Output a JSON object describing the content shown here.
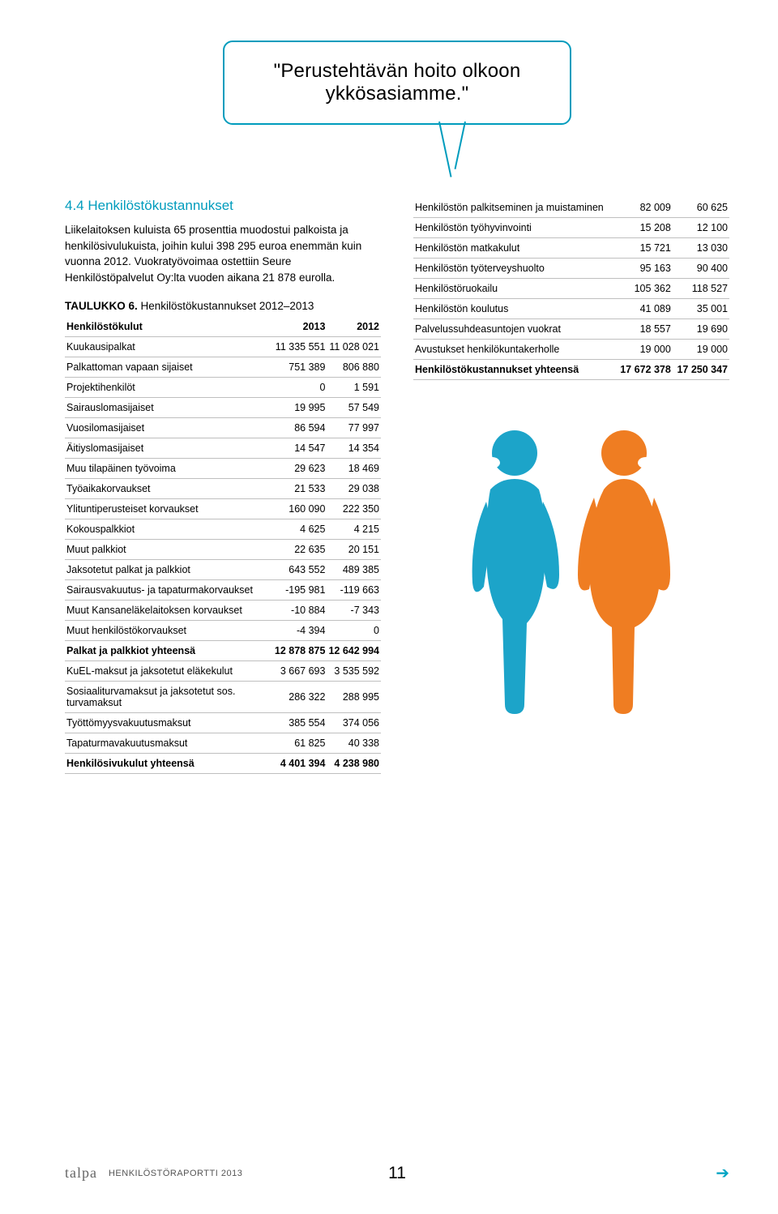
{
  "speech_bubble": {
    "text": "\"Perustehtävän hoito olkoon ykkösasiamme.\"",
    "border_color": "#009cbd",
    "fontsize": 24
  },
  "section": {
    "title": "4.4 Henkilöstökustannukset",
    "title_color": "#009cbd",
    "body": "Liikelaitoksen kuluista 65 prosenttia muodostui palkoista ja henkilösivulukuista, joihin kului  398 295 euroa enemmän kuin vuonna 2012. Vuokratyövoimaa ostettiin Seure Henkilöstöpalvelut Oy:lta vuoden aikana 21 878 eurolla."
  },
  "table_left": {
    "title": "TAULUKKO 6. Henkilöstökustannukset 2012–2013",
    "columns": [
      "Henkilöstökulut",
      "2013",
      "2012"
    ],
    "rows": [
      {
        "label": "Kuukausipalkat",
        "c1": "11 335 551",
        "c2": "11 028 021",
        "bold": false
      },
      {
        "label": "Palkattoman vapaan sijaiset",
        "c1": "751 389",
        "c2": "806 880",
        "bold": false
      },
      {
        "label": "Projektihenkilöt",
        "c1": "0",
        "c2": "1 591",
        "bold": false
      },
      {
        "label": "Sairauslomasijaiset",
        "c1": "19 995",
        "c2": "57 549",
        "bold": false
      },
      {
        "label": "Vuosilomasijaiset",
        "c1": "86 594",
        "c2": "77 997",
        "bold": false
      },
      {
        "label": "Äitiyslomasijaiset",
        "c1": "14 547",
        "c2": "14 354",
        "bold": false
      },
      {
        "label": "Muu tilapäinen työvoima",
        "c1": "29 623",
        "c2": "18 469",
        "bold": false
      },
      {
        "label": "Työaikakorvaukset",
        "c1": "21 533",
        "c2": "29 038",
        "bold": false
      },
      {
        "label": "Ylituntiperusteiset korvaukset",
        "c1": "160 090",
        "c2": "222 350",
        "bold": false
      },
      {
        "label": "Kokouspalkkiot",
        "c1": "4 625",
        "c2": "4 215",
        "bold": false
      },
      {
        "label": "Muut palkkiot",
        "c1": "22 635",
        "c2": "20 151",
        "bold": false
      },
      {
        "label": "Jaksotetut palkat ja palkkiot",
        "c1": "643 552",
        "c2": "489 385",
        "bold": false
      },
      {
        "label": "Sairausvakuutus- ja tapaturmakorvaukset",
        "c1": "-195 981",
        "c2": "-119 663",
        "bold": false
      },
      {
        "label": "Muut Kansaneläkelaitoksen korvaukset",
        "c1": "-10 884",
        "c2": "-7 343",
        "bold": false
      },
      {
        "label": "Muut henkilöstökorvaukset",
        "c1": "-4 394",
        "c2": "0",
        "bold": false
      },
      {
        "label": "Palkat ja palkkiot yhteensä",
        "c1": "12 878 875",
        "c2": "12 642 994",
        "bold": true
      },
      {
        "label": "KuEL-maksut ja jaksotetut eläkekulut",
        "c1": "3 667 693",
        "c2": "3 535 592",
        "bold": false
      },
      {
        "label": "Sosiaaliturvamaksut ja jaksotetut sos. turvamaksut",
        "c1": "286 322",
        "c2": "288 995",
        "bold": false
      },
      {
        "label": "Työttömyysvakuutusmaksut",
        "c1": "385 554",
        "c2": "374 056",
        "bold": false
      },
      {
        "label": "Tapaturmavakuutusmaksut",
        "c1": "61 825",
        "c2": "40 338",
        "bold": false
      },
      {
        "label": "Henkilösivukulut yhteensä",
        "c1": "4 401 394",
        "c2": "4 238 980",
        "bold": true
      }
    ]
  },
  "table_right": {
    "rows": [
      {
        "label": "Henkilöstön palkitseminen ja muistaminen",
        "c1": "82 009",
        "c2": "60 625",
        "bold": false
      },
      {
        "label": "Henkilöstön työhyvinvointi",
        "c1": "15 208",
        "c2": "12 100",
        "bold": false
      },
      {
        "label": "Henkilöstön matkakulut",
        "c1": "15 721",
        "c2": "13 030",
        "bold": false
      },
      {
        "label": "Henkilöstön työterveyshuolto",
        "c1": "95 163",
        "c2": "90 400",
        "bold": false
      },
      {
        "label": "Henkilöstöruokailu",
        "c1": "105 362",
        "c2": "118 527",
        "bold": false
      },
      {
        "label": "Henkilöstön koulutus",
        "c1": "41 089",
        "c2": "35 001",
        "bold": false
      },
      {
        "label": "Palvelussuhdeasuntojen vuokrat",
        "c1": "18 557",
        "c2": "19 690",
        "bold": false
      },
      {
        "label": "Avustukset henkilökuntakerholle",
        "c1": "19 000",
        "c2": "19 000",
        "bold": false
      },
      {
        "label": "Henkilöstökustannukset yhteensä",
        "c1": "17 672 378",
        "c2": "17 250 347",
        "bold": true
      }
    ]
  },
  "figures": {
    "left_color": "#1ca4c9",
    "right_color": "#ef7d22"
  },
  "footer": {
    "logo": "talpa",
    "report": "HENKILÖSTÖRAPORTTI 2013",
    "page": "11",
    "arrow_color": "#00a5c4"
  }
}
